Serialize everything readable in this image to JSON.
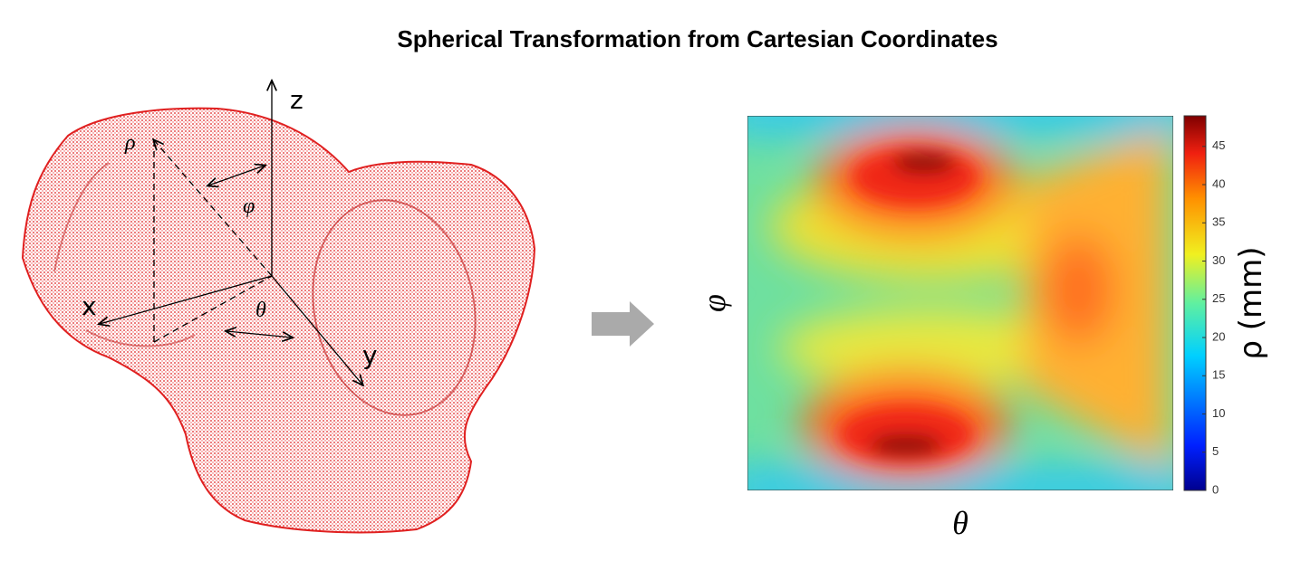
{
  "title": "Spherical Transformation from Cartesian Coordinates",
  "diagram": {
    "axes": {
      "z": "z",
      "x": "x",
      "y": "y"
    },
    "angles": {
      "rho": "ρ",
      "phi": "φ",
      "theta": "θ"
    }
  },
  "heatmap": {
    "x_label": "θ",
    "y_label": "φ",
    "colorbar": {
      "label": "ρ (mm)",
      "range": [
        0,
        49
      ],
      "ticks": [
        0,
        5,
        10,
        15,
        20,
        25,
        30,
        35,
        40,
        45
      ]
    }
  }
}
